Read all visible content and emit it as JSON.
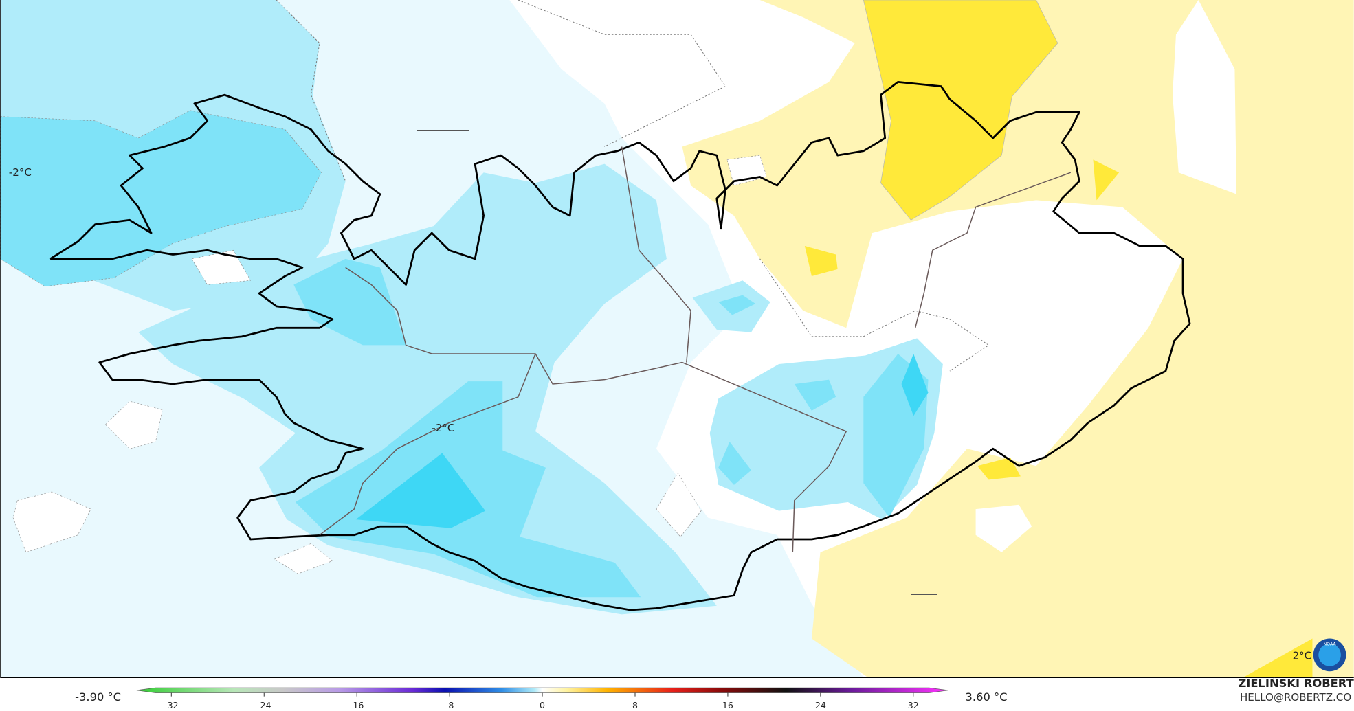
{
  "contour_labels": [
    "-2°C",
    "-2°C",
    "2°C"
  ],
  "colorbar": {
    "min_label": "-3.90 °C",
    "max_label": "3.60 °C",
    "lim": [
      -35,
      35
    ],
    "ticks": [
      -32,
      -24,
      -16,
      -8,
      0,
      8,
      16,
      24,
      32
    ]
  },
  "credit": {
    "author": "ZIELIŃSKI ROBERT",
    "email": "HELLO@ROBERTZ.CO"
  },
  "logo": "NOAA"
}
